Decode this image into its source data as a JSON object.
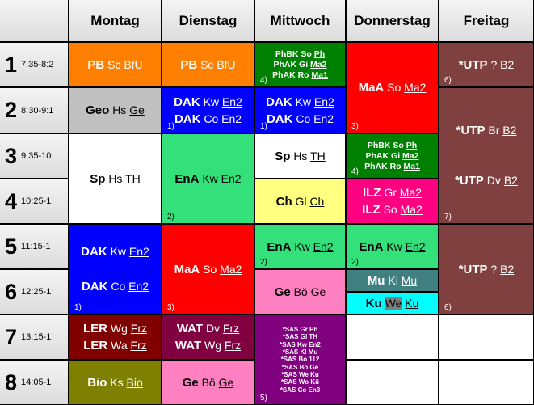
{
  "days": [
    "Montag",
    "Dienstag",
    "Mittwoch",
    "Donnerstag",
    "Freitag"
  ],
  "periods": [
    {
      "num": "1",
      "time": "7:35-8:2"
    },
    {
      "num": "2",
      "time": "8:30-9:1"
    },
    {
      "num": "3",
      "time": "9:35-10:"
    },
    {
      "num": "4",
      "time": "10:25-1"
    },
    {
      "num": "5",
      "time": "11:15-1"
    },
    {
      "num": "6",
      "time": "12:25-1"
    },
    {
      "num": "7",
      "time": "13:15-1"
    },
    {
      "num": "8",
      "time": "14:05-1"
    }
  ],
  "cells": [
    {
      "lines": [
        [
          "PB",
          "Sc",
          "BfU"
        ]
      ]
    },
    {
      "lines": [
        [
          "Geo",
          "Hs",
          "Ge"
        ]
      ]
    },
    {
      "lines": [
        [
          "Sp",
          "Hs",
          "TH"
        ]
      ]
    },
    {
      "lines": [
        [
          "DAK",
          "Kw",
          "En2"
        ],
        [
          "DAK",
          "Co",
          "En2"
        ]
      ],
      "note": "1)"
    },
    {
      "lines": [
        [
          "LER",
          "Wg",
          "Frz"
        ],
        [
          "LER",
          "Wa",
          "Frz"
        ]
      ]
    },
    {
      "lines": [
        [
          "Bio",
          "Ks",
          "Bio"
        ]
      ]
    },
    {
      "lines": [
        [
          "PB",
          "Sc",
          "BfU"
        ]
      ]
    },
    {
      "lines": [
        [
          "DAK",
          "Kw",
          "En2"
        ],
        [
          "DAK",
          "Co",
          "En2"
        ]
      ],
      "note": "1)"
    },
    {
      "lines": [
        [
          "EnA",
          "Kw",
          "En2"
        ]
      ],
      "note": "2)"
    },
    {
      "lines": [
        [
          "MaA",
          "So",
          "Ma2"
        ]
      ],
      "note": "3)"
    },
    {
      "lines": [
        [
          "WAT",
          "Dv",
          "Frz"
        ],
        [
          "WAT",
          "Wg",
          "Frz"
        ]
      ]
    },
    {
      "lines": [
        [
          "Ge",
          "Bö",
          "Ge"
        ]
      ]
    },
    {
      "lines": [
        [
          "PhBK",
          "So",
          "Ph"
        ],
        [
          "PhAK",
          "Gi",
          "Ma2"
        ],
        [
          "PhAK",
          "Ro",
          "Ma1"
        ]
      ],
      "note": "4)"
    },
    {
      "lines": [
        [
          "DAK",
          "Kw",
          "En2"
        ],
        [
          "DAK",
          "Co",
          "En2"
        ]
      ],
      "note": "1)"
    },
    {
      "lines": [
        [
          "Sp",
          "Hs",
          "TH"
        ]
      ]
    },
    {
      "lines": [
        [
          "Ch",
          "Gl",
          "Ch"
        ]
      ]
    },
    {
      "lines": [
        [
          "EnA",
          "Kw",
          "En2"
        ]
      ],
      "note": "2)"
    },
    {
      "lines": [
        [
          "Ge",
          "Bö",
          "Ge"
        ]
      ]
    },
    {
      "lines": [
        [
          "*SAS",
          "Gr",
          "Ph"
        ],
        [
          "*SAS",
          "Gl",
          "TH"
        ],
        [
          "*SAS",
          "Kw",
          "En2"
        ],
        [
          "*SAS",
          "Kl",
          "Mu"
        ],
        [
          "*SAS",
          "Bo",
          "112"
        ],
        [
          "*SAS",
          "Bö",
          "Ge"
        ],
        [
          "*SAS",
          "We",
          "Ku"
        ],
        [
          "*SAS",
          "Wo",
          "Kü"
        ],
        [
          "*SAS",
          "Co",
          "En3"
        ]
      ],
      "note": "5)"
    },
    {
      "lines": [
        [
          "MaA",
          "So",
          "Ma2"
        ]
      ],
      "note": "3)"
    },
    {
      "lines": [
        [
          "PhBK",
          "So",
          "Ph"
        ],
        [
          "PhAK",
          "Gi",
          "Ma2"
        ],
        [
          "PhAK",
          "Ro",
          "Ma1"
        ]
      ],
      "note": "4)"
    },
    {
      "lines": [
        [
          "ILZ",
          "Gr",
          "Ma2"
        ],
        [
          "ILZ",
          "So",
          "Ma2"
        ]
      ]
    },
    {
      "lines": [
        [
          "EnA",
          "Kw",
          "En2"
        ]
      ],
      "note": "2)"
    },
    {
      "lines": [
        [
          "Mu",
          "Ki",
          "Mu"
        ]
      ]
    },
    {
      "lines": [
        [
          "Ku",
          "We",
          "Ku"
        ]
      ]
    },
    {
      "lines": []
    },
    {
      "lines": []
    },
    {
      "lines": [
        [
          "*UTP",
          "?",
          "B2"
        ]
      ],
      "note": "6)"
    },
    {
      "lines": [
        [
          "*UTP",
          "Br",
          "B2"
        ],
        [
          "*UTP",
          "Dv",
          "B2"
        ]
      ],
      "note": "7)"
    },
    {
      "lines": [
        [
          "*UTP",
          "?",
          "B2"
        ]
      ],
      "note": "6)"
    },
    {
      "lines": []
    },
    {
      "lines": []
    }
  ]
}
